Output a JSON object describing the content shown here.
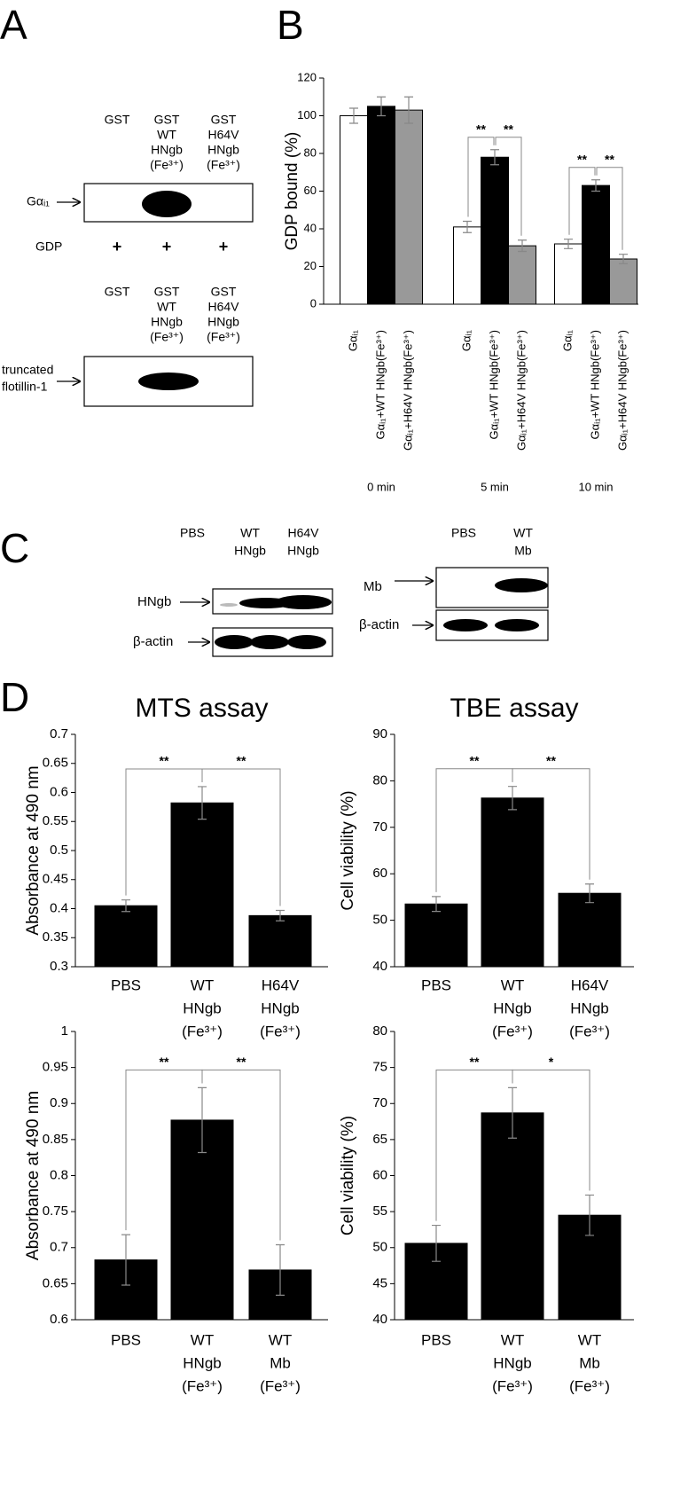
{
  "panel_labels": [
    "A",
    "B",
    "C",
    "D"
  ],
  "blot_a": {
    "top": {
      "lanes": [
        [
          "GST"
        ],
        [
          "GST",
          "WT",
          "HNgb",
          "(Fe³⁺)"
        ],
        [
          "GST",
          "H64V",
          "HNgb",
          "(Fe³⁺)"
        ]
      ],
      "row_label": "Gαᵢ₁",
      "cofactor_label": "GDP",
      "cofactor_marks": [
        "+",
        "+",
        "+"
      ]
    },
    "bottom": {
      "lanes": [
        [
          "GST"
        ],
        [
          "GST",
          "WT",
          "HNgb",
          "(Fe³⁺)"
        ],
        [
          "GST",
          "H64V",
          "HNgb",
          "(Fe³⁺)"
        ]
      ],
      "row_label": [
        "truncated",
        "flotillin-1"
      ]
    }
  },
  "blot_c": {
    "left": {
      "lanes": [
        [
          "PBS"
        ],
        [
          "WT",
          "HNgb"
        ],
        [
          "H64V",
          "HNgb"
        ]
      ],
      "rows": [
        "HNgb",
        "β-actin"
      ]
    },
    "right": {
      "lanes": [
        [
          "PBS"
        ],
        [
          "WT",
          "Mb"
        ]
      ],
      "rows": [
        "Mb",
        "β-actin"
      ]
    }
  },
  "chart_data": [
    {
      "type": "bar",
      "ylabel": "GDP bound (%)",
      "categories": [
        "0 min",
        "5 min",
        "10 min"
      ],
      "series": [
        {
          "name": "Gαᵢ₁",
          "color": "#ffffff",
          "values": [
            100,
            41,
            32
          ],
          "errors": [
            4,
            3,
            2.5
          ]
        },
        {
          "name": "Gαᵢ₁+WT HNgb(Fe³⁺)",
          "color": "#000000",
          "values": [
            105,
            78,
            63
          ],
          "errors": [
            5,
            4,
            3
          ]
        },
        {
          "name": "Gαᵢ₁+H64V HNgb(Fe³⁺)",
          "color": "#999999",
          "values": [
            103,
            31,
            24
          ],
          "errors": [
            7,
            3,
            2.5
          ]
        }
      ],
      "ylim": [
        0,
        120
      ],
      "yticks": [
        0,
        20,
        40,
        60,
        80,
        100,
        120
      ],
      "annotations": [
        "**",
        "**",
        "**",
        "**"
      ]
    },
    {
      "type": "bar",
      "title": "MTS assay",
      "ylabel": "Absorbance at 490 nm",
      "categories": [
        [
          "PBS"
        ],
        [
          "WT",
          "HNgb",
          "(Fe³⁺)"
        ],
        [
          "H64V",
          "HNgb",
          "(Fe³⁺)"
        ]
      ],
      "values": [
        0.405,
        0.582,
        0.388
      ],
      "errors": [
        0.01,
        0.028,
        0.009
      ],
      "color": "#000000",
      "ylim": [
        0.3,
        0.7
      ],
      "yticks": [
        0.3,
        0.35,
        0.4,
        0.45,
        0.5,
        0.55,
        0.6,
        0.65,
        0.7
      ],
      "annotations": [
        "**",
        "**"
      ]
    },
    {
      "type": "bar",
      "title": "TBE assay",
      "ylabel": "Cell viability (%)",
      "categories": [
        [
          "PBS"
        ],
        [
          "WT",
          "HNgb",
          "(Fe³⁺)"
        ],
        [
          "H64V",
          "HNgb",
          "(Fe³⁺)"
        ]
      ],
      "values": [
        53.5,
        76.3,
        55.8
      ],
      "errors": [
        1.6,
        2.5,
        2
      ],
      "color": "#000000",
      "ylim": [
        40,
        90
      ],
      "yticks": [
        40,
        50,
        60,
        70,
        80,
        90
      ],
      "annotations": [
        "**",
        "**"
      ]
    },
    {
      "type": "bar",
      "ylabel": "Absorbance at 490 nm",
      "categories": [
        [
          "PBS"
        ],
        [
          "WT",
          "HNgb",
          "(Fe³⁺)"
        ],
        [
          "WT",
          "Mb",
          "(Fe³⁺)"
        ]
      ],
      "values": [
        0.683,
        0.877,
        0.669
      ],
      "errors": [
        0.035,
        0.045,
        0.035
      ],
      "color": "#000000",
      "ylim": [
        0.6,
        1
      ],
      "yticks": [
        0.6,
        0.65,
        0.7,
        0.75,
        0.8,
        0.85,
        0.9,
        0.95,
        1
      ],
      "annotations": [
        "**",
        "**"
      ]
    },
    {
      "type": "bar",
      "ylabel": "Cell viability (%)",
      "categories": [
        [
          "PBS"
        ],
        [
          "WT",
          "HNgb",
          "(Fe³⁺)"
        ],
        [
          "WT",
          "Mb",
          "(Fe³⁺)"
        ]
      ],
      "values": [
        50.6,
        68.7,
        54.5
      ],
      "errors": [
        2.5,
        3.5,
        2.8
      ],
      "color": "#000000",
      "ylim": [
        40,
        80
      ],
      "yticks": [
        40,
        45,
        50,
        55,
        60,
        65,
        70,
        75,
        80
      ],
      "annotations": [
        "**",
        "*"
      ]
    }
  ]
}
